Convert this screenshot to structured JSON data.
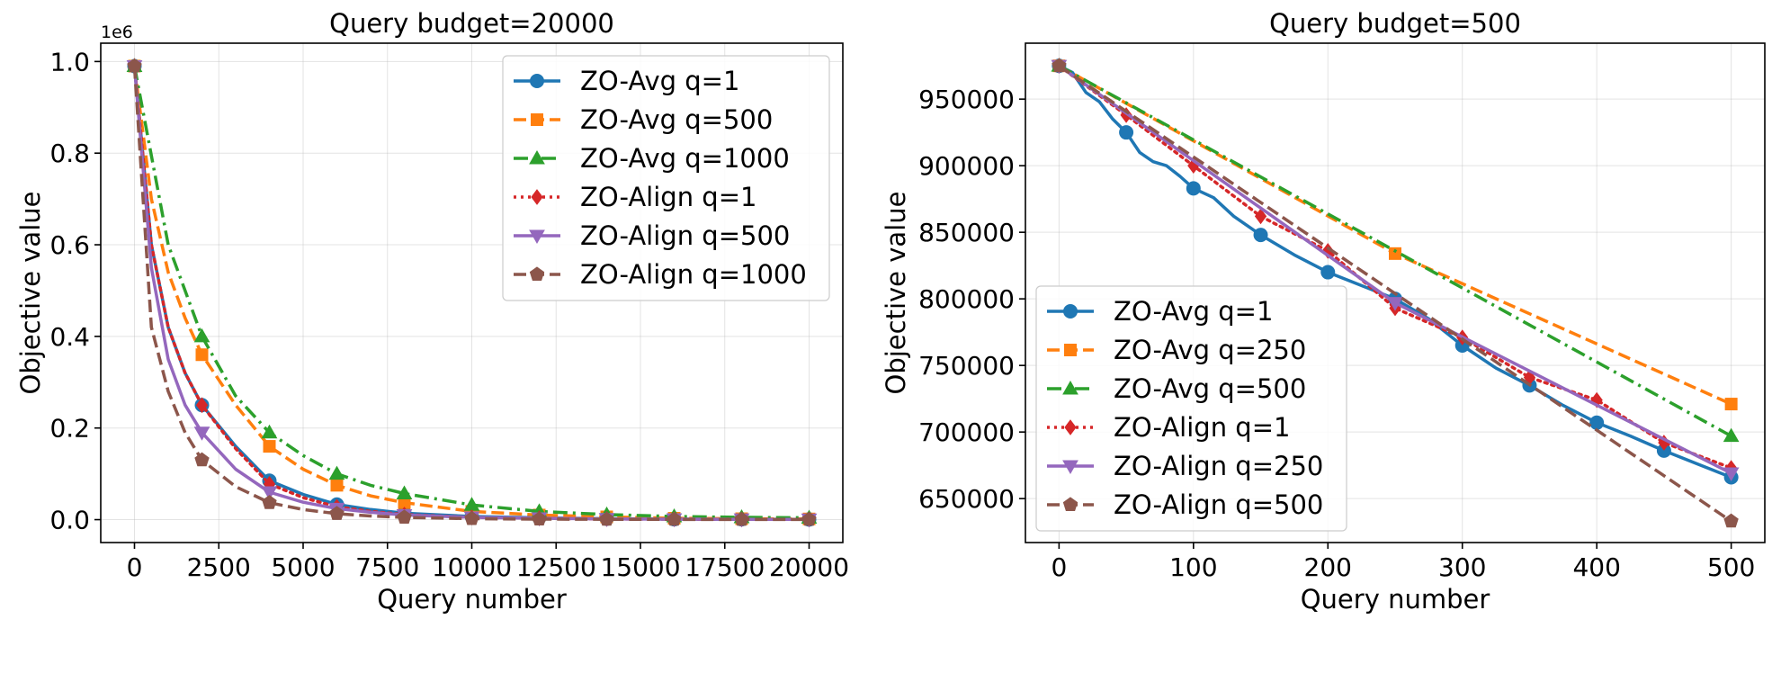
{
  "chart_data": [
    {
      "type": "line",
      "title": "Query budget=20000",
      "xlabel": "Query number",
      "ylabel": "Objective value",
      "y_offset_label": "1e6",
      "xlim": [
        -1000,
        21000
      ],
      "ylim": [
        -0.05,
        1.04
      ],
      "xticks": [
        0,
        2500,
        5000,
        7500,
        10000,
        12500,
        15000,
        17500,
        20000
      ],
      "xtick_labels": [
        "0",
        "2500",
        "5000",
        "7500",
        "10000",
        "12500",
        "15000",
        "17500",
        "20000"
      ],
      "yticks": [
        0.0,
        0.2,
        0.4,
        0.6,
        0.8,
        1.0
      ],
      "ytick_labels": [
        "0.0",
        "0.2",
        "0.4",
        "0.6",
        "0.8",
        "1.0"
      ],
      "grid": true,
      "legend_position": "top-right",
      "series": [
        {
          "name": "ZO-Avg q=1",
          "color": "#1f77b4",
          "dash": "solid",
          "marker": "circle",
          "x": [
            0,
            500,
            1000,
            1500,
            2000,
            3000,
            4000,
            5000,
            6000,
            7000,
            8000,
            10000,
            12000,
            14000,
            16000,
            18000,
            20000
          ],
          "y": [
            0.99,
            0.6,
            0.42,
            0.32,
            0.25,
            0.16,
            0.085,
            0.055,
            0.033,
            0.022,
            0.014,
            0.007,
            0.004,
            0.002,
            0.001,
            0.0008,
            0.0005
          ],
          "markers_x": [
            0,
            2000,
            4000,
            6000,
            8000,
            10000,
            12000,
            14000,
            16000,
            18000,
            20000
          ],
          "markers_y": [
            0.99,
            0.25,
            0.085,
            0.033,
            0.014,
            0.007,
            0.004,
            0.002,
            0.001,
            0.0008,
            0.0005
          ]
        },
        {
          "name": "ZO-Avg q=500",
          "color": "#ff7f0e",
          "dash": "dashed",
          "marker": "square",
          "x": [
            0,
            500,
            1000,
            1500,
            2000,
            3000,
            4000,
            5000,
            6000,
            7000,
            8000,
            10000,
            12000,
            14000,
            16000,
            18000,
            20000
          ],
          "y": [
            0.99,
            0.7,
            0.54,
            0.44,
            0.36,
            0.25,
            0.16,
            0.11,
            0.075,
            0.052,
            0.037,
            0.018,
            0.01,
            0.006,
            0.003,
            0.002,
            0.0015
          ],
          "markers_x": [
            0,
            2000,
            4000,
            6000,
            8000,
            10000,
            12000,
            14000,
            16000,
            18000,
            20000
          ],
          "markers_y": [
            0.99,
            0.36,
            0.16,
            0.075,
            0.037,
            0.018,
            0.01,
            0.006,
            0.003,
            0.002,
            0.0015
          ]
        },
        {
          "name": "ZO-Avg q=1000",
          "color": "#2ca02c",
          "dash": "dashdot",
          "marker": "triangle-up",
          "x": [
            0,
            1000,
            2000,
            3000,
            4000,
            5000,
            6000,
            7000,
            8000,
            10000,
            12000,
            14000,
            16000,
            18000,
            20000
          ],
          "y": [
            0.99,
            0.6,
            0.4,
            0.27,
            0.19,
            0.14,
            0.1,
            0.075,
            0.057,
            0.032,
            0.018,
            0.011,
            0.007,
            0.005,
            0.004
          ],
          "markers_x": [
            0,
            2000,
            4000,
            6000,
            8000,
            10000,
            12000,
            14000,
            16000,
            18000,
            20000
          ],
          "markers_y": [
            0.99,
            0.4,
            0.19,
            0.1,
            0.057,
            0.032,
            0.018,
            0.011,
            0.007,
            0.005,
            0.004
          ]
        },
        {
          "name": "ZO-Align q=1",
          "color": "#d62728",
          "dash": "dotted",
          "marker": "diamond",
          "x": [
            0,
            500,
            1000,
            1500,
            2000,
            3000,
            4000,
            5000,
            6000,
            7000,
            8000,
            10000,
            12000,
            14000,
            16000,
            18000,
            20000
          ],
          "y": [
            0.99,
            0.6,
            0.42,
            0.32,
            0.25,
            0.155,
            0.078,
            0.048,
            0.028,
            0.018,
            0.011,
            0.005,
            0.003,
            0.0015,
            0.001,
            0.0007,
            0.0005
          ],
          "markers_x": [
            0,
            2000,
            4000,
            6000,
            8000,
            10000,
            12000,
            14000,
            16000,
            18000,
            20000
          ],
          "markers_y": [
            0.99,
            0.25,
            0.078,
            0.028,
            0.011,
            0.005,
            0.003,
            0.0015,
            0.001,
            0.0007,
            0.0005
          ]
        },
        {
          "name": "ZO-Align q=500",
          "color": "#9467bd",
          "dash": "solid",
          "marker": "triangle-down",
          "x": [
            0,
            500,
            1000,
            1500,
            2000,
            3000,
            4000,
            5000,
            6000,
            7000,
            8000,
            10000,
            12000,
            14000,
            16000,
            18000,
            20000
          ],
          "y": [
            0.99,
            0.55,
            0.35,
            0.25,
            0.19,
            0.11,
            0.06,
            0.038,
            0.024,
            0.016,
            0.01,
            0.005,
            0.003,
            0.0015,
            0.001,
            0.0007,
            0.0005
          ],
          "markers_x": [
            0,
            2000,
            4000,
            6000,
            8000,
            10000,
            12000,
            14000,
            16000,
            18000,
            20000
          ],
          "markers_y": [
            0.99,
            0.19,
            0.06,
            0.024,
            0.01,
            0.005,
            0.003,
            0.0015,
            0.001,
            0.0007,
            0.0005
          ]
        },
        {
          "name": "ZO-Align q=1000",
          "color": "#8c564b",
          "dash": "dashed",
          "marker": "pentagon",
          "x": [
            0,
            500,
            1000,
            1500,
            2000,
            3000,
            4000,
            5000,
            6000,
            7000,
            8000,
            10000,
            12000,
            14000,
            16000,
            18000,
            20000
          ],
          "y": [
            0.99,
            0.42,
            0.28,
            0.19,
            0.13,
            0.072,
            0.037,
            0.022,
            0.013,
            0.008,
            0.005,
            0.002,
            0.001,
            0.0006,
            0.0004,
            0.0003,
            0.0002
          ],
          "markers_x": [
            0,
            2000,
            4000,
            6000,
            8000,
            10000,
            12000,
            14000,
            16000,
            18000,
            20000
          ],
          "markers_y": [
            0.99,
            0.13,
            0.037,
            0.013,
            0.005,
            0.002,
            0.001,
            0.0006,
            0.0004,
            0.0003,
            0.0002
          ]
        }
      ]
    },
    {
      "type": "line",
      "title": "Query budget=500",
      "xlabel": "Query number",
      "ylabel": "Objective value",
      "xlim": [
        -25,
        525
      ],
      "ylim": [
        617000,
        992000
      ],
      "xticks": [
        0,
        100,
        200,
        300,
        400,
        500
      ],
      "xtick_labels": [
        "0",
        "100",
        "200",
        "300",
        "400",
        "500"
      ],
      "yticks": [
        650000,
        700000,
        750000,
        800000,
        850000,
        900000,
        950000
      ],
      "ytick_labels": [
        "650000",
        "700000",
        "750000",
        "800000",
        "850000",
        "900000",
        "950000"
      ],
      "grid": true,
      "legend_position": "lower-left",
      "series": [
        {
          "name": "ZO-Avg q=1",
          "color": "#1f77b4",
          "dash": "solid",
          "marker": "circle",
          "x": [
            0,
            10,
            20,
            30,
            40,
            50,
            60,
            70,
            80,
            90,
            100,
            115,
            130,
            150,
            175,
            200,
            225,
            250,
            275,
            300,
            325,
            350,
            375,
            400,
            425,
            450,
            475,
            500
          ],
          "y": [
            975000,
            970000,
            955000,
            948000,
            935000,
            925000,
            910000,
            903000,
            900000,
            892000,
            883000,
            876000,
            862000,
            848000,
            833000,
            820000,
            810000,
            800000,
            785000,
            765000,
            748000,
            735000,
            720000,
            707000,
            697000,
            686000,
            676000,
            666000
          ],
          "markers_x": [
            0,
            50,
            100,
            150,
            200,
            250,
            300,
            350,
            400,
            450,
            500
          ],
          "markers_y": [
            975000,
            925000,
            883000,
            848000,
            820000,
            800000,
            765000,
            735000,
            707000,
            686000,
            666000
          ]
        },
        {
          "name": "ZO-Avg q=250",
          "color": "#ff7f0e",
          "dash": "dashed",
          "marker": "square",
          "x": [
            0,
            250,
            500
          ],
          "y": [
            975000,
            834000,
            721000
          ],
          "markers_x": [
            0,
            250,
            500
          ],
          "markers_y": [
            975000,
            834000,
            721000
          ]
        },
        {
          "name": "ZO-Avg q=500",
          "color": "#2ca02c",
          "dash": "dashdot",
          "marker": "triangle-up",
          "x": [
            0,
            500
          ],
          "y": [
            975000,
            697000
          ],
          "markers_x": [
            0,
            500
          ],
          "markers_y": [
            975000,
            697000
          ]
        },
        {
          "name": "ZO-Align q=1",
          "color": "#d62728",
          "dash": "dotted",
          "marker": "diamond",
          "x": [
            0,
            50,
            100,
            150,
            200,
            250,
            300,
            350,
            400,
            450,
            500
          ],
          "y": [
            975000,
            938000,
            900000,
            862000,
            836000,
            793000,
            771000,
            741000,
            724000,
            692000,
            673000
          ],
          "markers_x": [
            0,
            50,
            100,
            150,
            200,
            250,
            300,
            350,
            400,
            450,
            500
          ],
          "markers_y": [
            975000,
            938000,
            900000,
            862000,
            836000,
            793000,
            771000,
            741000,
            724000,
            692000,
            673000
          ]
        },
        {
          "name": "ZO-Align q=250",
          "color": "#9467bd",
          "dash": "solid",
          "marker": "triangle-down",
          "x": [
            0,
            250,
            500
          ],
          "y": [
            975000,
            797000,
            669000
          ],
          "markers_x": [
            0,
            250,
            500
          ],
          "markers_y": [
            975000,
            797000,
            669000
          ]
        },
        {
          "name": "ZO-Align q=500",
          "color": "#8c564b",
          "dash": "dashed",
          "marker": "pentagon",
          "x": [
            0,
            500
          ],
          "y": [
            975000,
            633000
          ],
          "markers_x": [
            0,
            500
          ],
          "markers_y": [
            975000,
            633000
          ]
        }
      ]
    }
  ]
}
